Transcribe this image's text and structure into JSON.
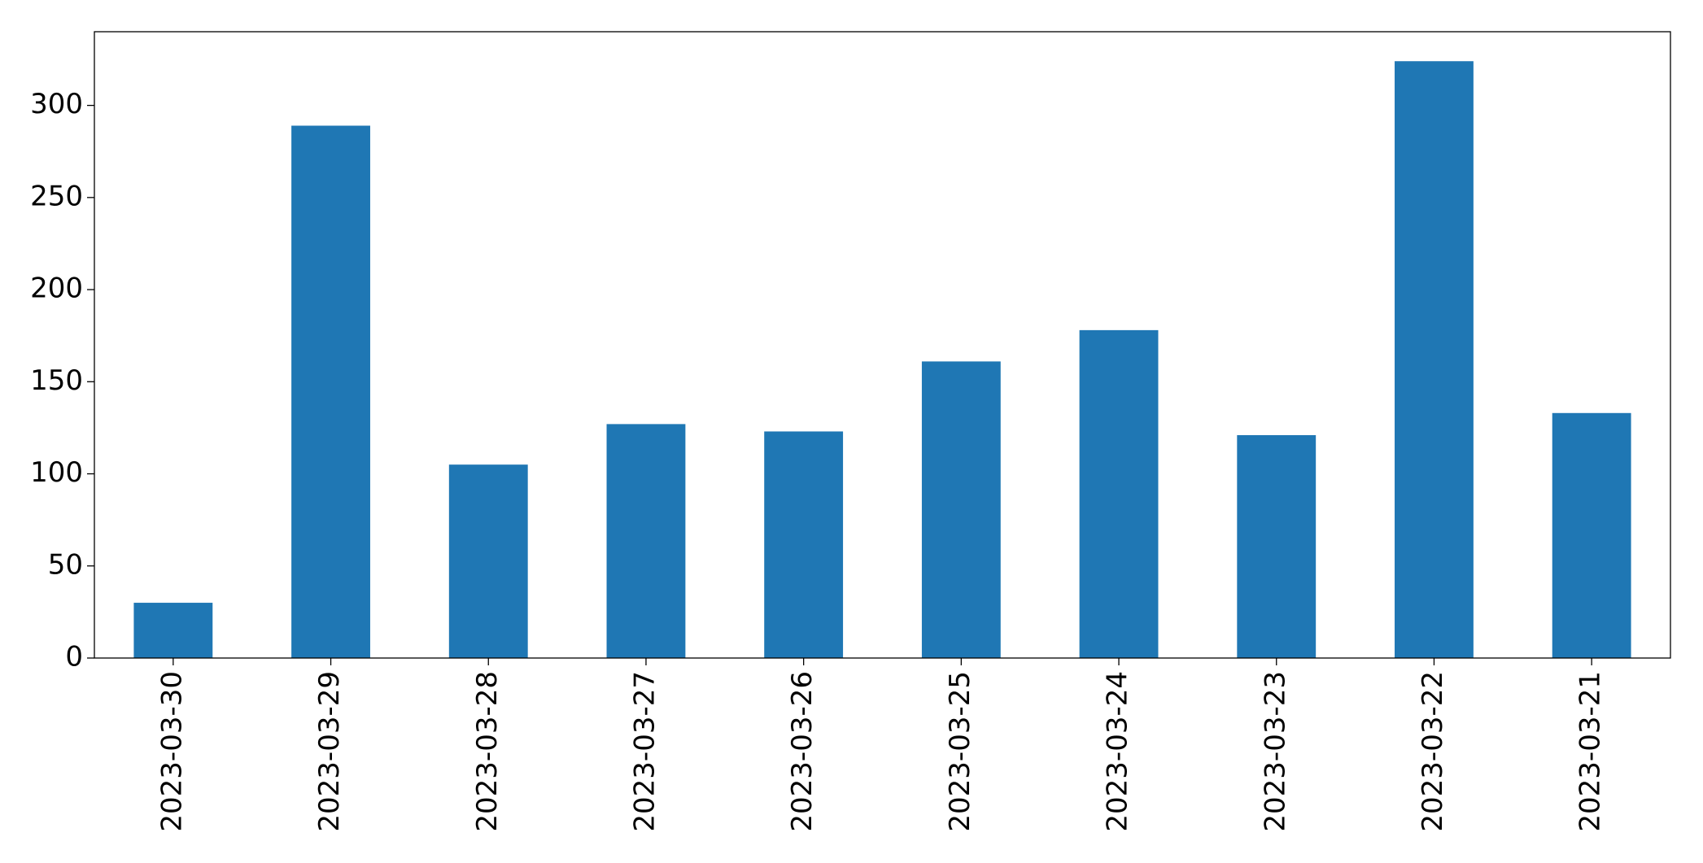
{
  "chart_data": {
    "type": "bar",
    "categories": [
      "2023-03-30",
      "2023-03-29",
      "2023-03-28",
      "2023-03-27",
      "2023-03-26",
      "2023-03-25",
      "2023-03-24",
      "2023-03-23",
      "2023-03-22",
      "2023-03-21"
    ],
    "values": [
      30,
      289,
      105,
      127,
      123,
      161,
      178,
      121,
      324,
      133
    ],
    "color": "#1f77b4",
    "ylim": [
      0,
      340
    ],
    "yticks": [
      0,
      50,
      100,
      150,
      200,
      250,
      300
    ],
    "grid": false
  }
}
